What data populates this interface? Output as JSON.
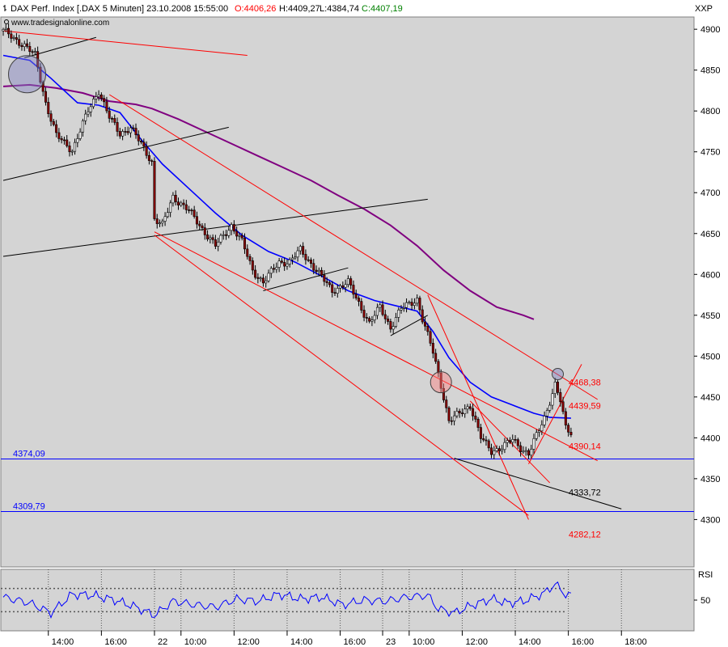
{
  "header": {
    "instrument": "DAX Perf. Index [.DAX  5 Minuten] 23.10.2008 15:55:00",
    "open": "O:4406,26",
    "high": "H:4409,27",
    "low": "L:4384,74",
    "close": "C:4407,19",
    "watermark": "www.tradesignalonline.com",
    "axis_unit": "XXP",
    "rsi_label": "RSI"
  },
  "colors": {
    "background": "#d4d4d4",
    "candle_up": "#ffffff",
    "candle_down": "#8b0000",
    "sma_short": "#0000ff",
    "sma_long": "#800080",
    "trend_red": "#ff0000",
    "trend_black": "#000000",
    "support": "#0000ff",
    "rsi": "#0000ff"
  },
  "chart_data": [
    {
      "type": "candlestick",
      "interval": "5 Minuten",
      "x_ticks": [
        "14:00",
        "16:00",
        "22",
        "10:00",
        "12:00",
        "14:00",
        "16:00",
        "23",
        "10:00",
        "12:00",
        "14:00",
        "16:00",
        "18:00"
      ],
      "x_tick_bar_index": [
        17,
        37,
        57,
        67,
        87,
        107,
        127,
        143,
        153,
        173,
        193,
        213,
        233
      ],
      "y_ticks": [
        4300,
        4350,
        4400,
        4450,
        4500,
        4550,
        4600,
        4650,
        4700,
        4750,
        4800,
        4850,
        4900
      ],
      "ylim": [
        4242,
        4915
      ],
      "grid": false,
      "price_path": [
        [
          0,
          4898
        ],
        [
          8,
          4880
        ],
        [
          12,
          4868
        ],
        [
          16,
          4810
        ],
        [
          20,
          4770
        ],
        [
          26,
          4752
        ],
        [
          32,
          4800
        ],
        [
          36,
          4825
        ],
        [
          40,
          4792
        ],
        [
          44,
          4772
        ],
        [
          48,
          4780
        ],
        [
          56,
          4738
        ],
        [
          57,
          4668
        ],
        [
          60,
          4660
        ],
        [
          64,
          4695
        ],
        [
          70,
          4678
        ],
        [
          74,
          4660
        ],
        [
          80,
          4635
        ],
        [
          86,
          4660
        ],
        [
          90,
          4640
        ],
        [
          94,
          4605
        ],
        [
          98,
          4590
        ],
        [
          104,
          4615
        ],
        [
          108,
          4615
        ],
        [
          112,
          4630
        ],
        [
          118,
          4605
        ],
        [
          124,
          4580
        ],
        [
          130,
          4590
        ],
        [
          134,
          4565
        ],
        [
          138,
          4540
        ],
        [
          142,
          4560
        ],
        [
          146,
          4535
        ],
        [
          150,
          4558
        ],
        [
          156,
          4570
        ],
        [
          158,
          4545
        ],
        [
          162,
          4505
        ],
        [
          165,
          4465
        ],
        [
          168,
          4420
        ],
        [
          172,
          4430
        ],
        [
          176,
          4440
        ],
        [
          180,
          4400
        ],
        [
          184,
          4384
        ],
        [
          188,
          4388
        ],
        [
          192,
          4398
        ],
        [
          196,
          4385
        ],
        [
          198,
          4380
        ],
        [
          200,
          4395
        ],
        [
          204,
          4425
        ],
        [
          208,
          4465
        ],
        [
          210,
          4445
        ],
        [
          212,
          4412
        ],
        [
          214,
          4407
        ]
      ],
      "sma_short": [
        [
          0,
          4868
        ],
        [
          10,
          4862
        ],
        [
          18,
          4840
        ],
        [
          28,
          4810
        ],
        [
          36,
          4807
        ],
        [
          44,
          4798
        ],
        [
          52,
          4765
        ],
        [
          60,
          4735
        ],
        [
          70,
          4705
        ],
        [
          80,
          4675
        ],
        [
          90,
          4648
        ],
        [
          100,
          4628
        ],
        [
          110,
          4615
        ],
        [
          120,
          4598
        ],
        [
          130,
          4580
        ],
        [
          140,
          4568
        ],
        [
          150,
          4560
        ],
        [
          156,
          4555
        ],
        [
          162,
          4530
        ],
        [
          168,
          4498
        ],
        [
          176,
          4468
        ],
        [
          184,
          4450
        ],
        [
          192,
          4440
        ],
        [
          200,
          4430
        ],
        [
          206,
          4425
        ],
        [
          214,
          4424
        ]
      ],
      "sma_long": [
        [
          0,
          4830
        ],
        [
          10,
          4832
        ],
        [
          20,
          4828
        ],
        [
          30,
          4822
        ],
        [
          40,
          4812
        ],
        [
          50,
          4808
        ],
        [
          56,
          4803
        ],
        [
          66,
          4790
        ],
        [
          76,
          4775
        ],
        [
          86,
          4760
        ],
        [
          96,
          4745
        ],
        [
          106,
          4730
        ],
        [
          116,
          4715
        ],
        [
          126,
          4697
        ],
        [
          136,
          4680
        ],
        [
          146,
          4660
        ],
        [
          156,
          4635
        ],
        [
          166,
          4605
        ],
        [
          176,
          4580
        ],
        [
          186,
          4560
        ],
        [
          196,
          4550
        ],
        [
          200,
          4545
        ]
      ],
      "trendlines": [
        {
          "color": "black",
          "from": [
            0,
            4715
          ],
          "to": [
            85,
            4780
          ]
        },
        {
          "color": "black",
          "from": [
            0,
            4622
          ],
          "to": [
            160,
            4692
          ]
        },
        {
          "color": "black",
          "from": [
            8,
            4865
          ],
          "to": [
            35,
            4890
          ]
        },
        {
          "color": "black",
          "from": [
            98,
            4580
          ],
          "to": [
            130,
            4608
          ]
        },
        {
          "color": "black",
          "from": [
            146,
            4525
          ],
          "to": [
            160,
            4550
          ]
        },
        {
          "color": "black",
          "from": [
            170,
            4375
          ],
          "to": [
            233,
            4313
          ]
        },
        {
          "color": "red",
          "from": [
            0,
            4898
          ],
          "to": [
            92,
            4868
          ]
        },
        {
          "color": "red",
          "from": [
            40,
            4820
          ],
          "to": [
            224,
            4447
          ]
        },
        {
          "color": "red",
          "from": [
            57,
            4652
          ],
          "to": [
            224,
            4372
          ]
        },
        {
          "color": "red",
          "from": [
            57,
            4648
          ],
          "to": [
            198,
            4305
          ]
        },
        {
          "color": "red",
          "from": [
            160,
            4575
          ],
          "to": [
            198,
            4300
          ]
        },
        {
          "color": "red",
          "from": [
            176,
            4445
          ],
          "to": [
            206,
            4345
          ]
        },
        {
          "color": "red",
          "from": [
            198,
            4368
          ],
          "to": [
            218,
            4490
          ]
        }
      ],
      "circles": [
        {
          "at": [
            9,
            4845
          ],
          "color": "#8080c0"
        },
        {
          "at": [
            165,
            4468
          ],
          "color": "#ff8080"
        },
        {
          "at": [
            209,
            4478
          ],
          "color": "#8080c0"
        }
      ],
      "levels": [
        {
          "label": "4468,38",
          "value": 4468.38,
          "color": "red"
        },
        {
          "label": "4439,59",
          "value": 4439.59,
          "color": "red"
        },
        {
          "label": "4390,14",
          "value": 4390.14,
          "color": "red"
        },
        {
          "label": "4333,72",
          "value": 4333.72,
          "color": "black"
        },
        {
          "label": "4282,12",
          "value": 4282.12,
          "color": "red"
        }
      ],
      "support": [
        {
          "label": "4374,09",
          "value": 4374.09
        },
        {
          "label": "4309,79",
          "value": 4309.79
        }
      ]
    },
    {
      "type": "line",
      "name": "RSI",
      "y_ticks": [
        50
      ],
      "ylim": [
        0,
        100
      ],
      "reference_lines": [
        70,
        30
      ],
      "values_path": [
        [
          0,
          55
        ],
        [
          10,
          45
        ],
        [
          18,
          28
        ],
        [
          26,
          60
        ],
        [
          34,
          58
        ],
        [
          42,
          50
        ],
        [
          50,
          38
        ],
        [
          57,
          24
        ],
        [
          64,
          48
        ],
        [
          72,
          42
        ],
        [
          80,
          38
        ],
        [
          88,
          52
        ],
        [
          96,
          48
        ],
        [
          104,
          60
        ],
        [
          112,
          52
        ],
        [
          120,
          55
        ],
        [
          128,
          42
        ],
        [
          136,
          50
        ],
        [
          144,
          48
        ],
        [
          152,
          55
        ],
        [
          160,
          58
        ],
        [
          164,
          35
        ],
        [
          170,
          28
        ],
        [
          176,
          40
        ],
        [
          184,
          52
        ],
        [
          190,
          45
        ],
        [
          196,
          48
        ],
        [
          204,
          62
        ],
        [
          208,
          78
        ],
        [
          210,
          68
        ],
        [
          212,
          60
        ],
        [
          214,
          58
        ]
      ]
    }
  ]
}
